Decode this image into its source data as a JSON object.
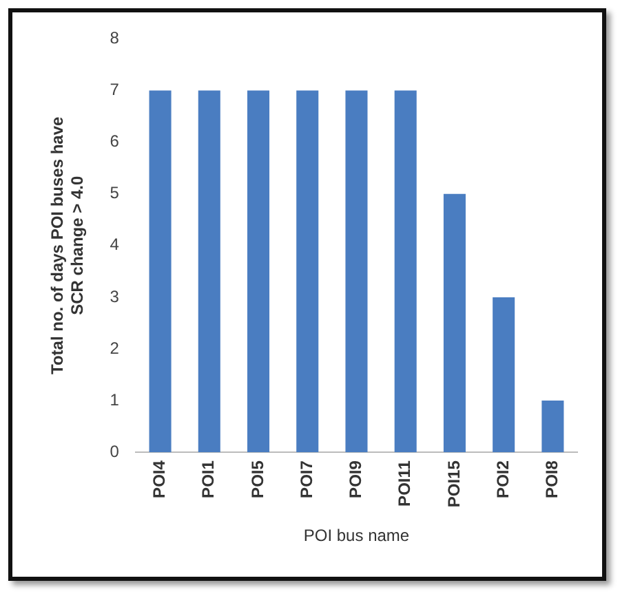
{
  "chart_data": {
    "type": "bar",
    "xlabel": "POI bus name",
    "ylabel": "Total no. of days POI buses have SCR change > 4.0",
    "categories": [
      "POI4",
      "POI1",
      "POI5",
      "POI7",
      "POI9",
      "POI11",
      "POI15",
      "POI2",
      "POI8"
    ],
    "values": [
      7,
      7,
      7,
      7,
      7,
      7,
      5,
      3,
      1
    ],
    "color": "#4a7dc1",
    "ylim": [
      0,
      8
    ],
    "yticks": [
      0,
      1,
      2,
      3,
      4,
      5,
      6,
      7,
      8
    ],
    "grid": false,
    "legend": false
  }
}
